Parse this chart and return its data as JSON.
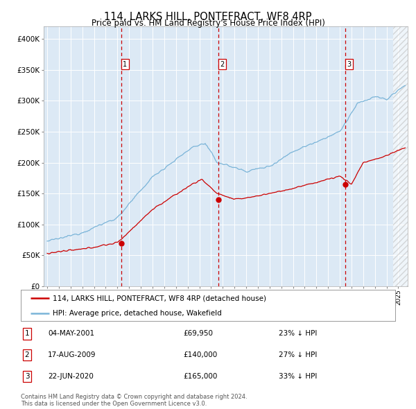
{
  "title": "114, LARKS HILL, PONTEFRACT, WF8 4RP",
  "subtitle": "Price paid vs. HM Land Registry's House Price Index (HPI)",
  "background_color": "#ffffff",
  "plot_bg_color": "#dce9f5",
  "hpi_color": "#7ab4d8",
  "price_color": "#cc0000",
  "marker_color": "#cc0000",
  "ylim": [
    0,
    420000
  ],
  "yticks": [
    0,
    50000,
    100000,
    150000,
    200000,
    250000,
    300000,
    350000,
    400000
  ],
  "xlim_start": 1994.7,
  "xlim_end": 2025.8,
  "sale_dates": [
    2001.35,
    2009.63,
    2020.47
  ],
  "sale_prices": [
    69950,
    140000,
    165000
  ],
  "sale_labels": [
    "1",
    "2",
    "3"
  ],
  "legend_price_label": "114, LARKS HILL, PONTEFRACT, WF8 4RP (detached house)",
  "legend_hpi_label": "HPI: Average price, detached house, Wakefield",
  "table_rows": [
    [
      "1",
      "04-MAY-2001",
      "£69,950",
      "23% ↓ HPI"
    ],
    [
      "2",
      "17-AUG-2009",
      "£140,000",
      "27% ↓ HPI"
    ],
    [
      "3",
      "22-JUN-2020",
      "£165,000",
      "33% ↓ HPI"
    ]
  ],
  "footer": "Contains HM Land Registry data © Crown copyright and database right 2024.\nThis data is licensed under the Open Government Licence v3.0.",
  "grid_color": "#ffffff",
  "dashed_color": "#cc0000",
  "hatch_start": 2024.58
}
